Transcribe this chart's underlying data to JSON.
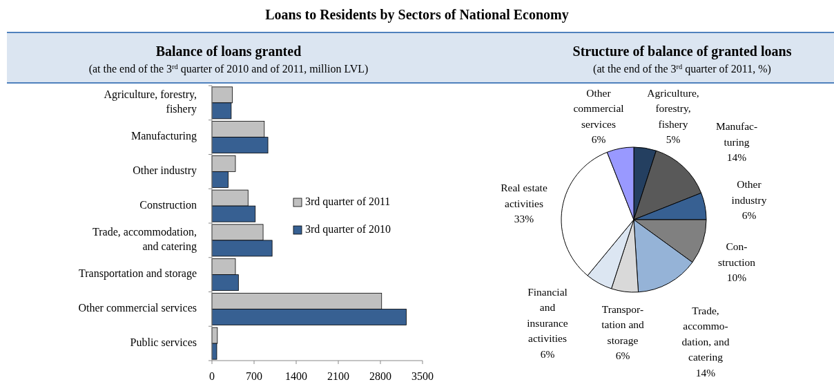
{
  "chart_data": [
    {
      "type": "bar",
      "orientation": "horizontal",
      "title": "Balance of loans granted",
      "subtitle": "(at the end of the 3$^{rd}$ quarter of 2010 and of 2011, million LVL)",
      "annotations": [
        "Loans to Residents by Sectors of National Economy"
      ],
      "categories": [
        "Agriculture, forestry,\nfishery",
        "Manufacturing",
        "Other industry",
        "Construction",
        "Trade, accommodation,\nand catering",
        "Transportation and storage",
        "Other commercial services",
        "Public services"
      ],
      "series": [
        {
          "name": "3rd quarter of 2011",
          "color": "#c0c0c0",
          "values": [
            340,
            870,
            390,
            600,
            850,
            390,
            2820,
            90
          ]
        },
        {
          "name": "3rd quarter of 2010",
          "color": "#376092",
          "values": [
            320,
            930,
            270,
            720,
            1000,
            440,
            3230,
            80
          ]
        }
      ],
      "xlim": [
        0,
        3500
      ],
      "xticks": [
        0,
        700,
        1400,
        2100,
        2800,
        3500
      ],
      "grid": false,
      "legend": "right"
    },
    {
      "type": "pie",
      "title": "Structure of balance of granted loans",
      "subtitle": "(at the end of the 3$^{rd}$ quarter of 2011, %)",
      "categories": [
        "Agriculture,\nforestry,\nfishery",
        "Manufac-\nturing",
        "Other\nindustry",
        "Con-\nstruction",
        "Trade,\naccommo-\ndation, and\ncatering",
        "Transpor-\ntation and\nstorage",
        "Financial\nand\ninsurance\nactivities",
        "Real estate\nactivities",
        "Other\ncommercial\nservices"
      ],
      "values": [
        5,
        14,
        6,
        10,
        14,
        6,
        6,
        33,
        6
      ],
      "colors": [
        "#243f60",
        "#595959",
        "#376092",
        "#808080",
        "#95b3d7",
        "#d9d9d9",
        "#dce6f2",
        "#ffffff",
        "#9999ff"
      ],
      "value_labels": [
        "5%",
        "14%",
        "6%",
        "10%",
        "14%",
        "6%",
        "6%",
        "33%",
        "6%"
      ],
      "legend": false
    }
  ]
}
